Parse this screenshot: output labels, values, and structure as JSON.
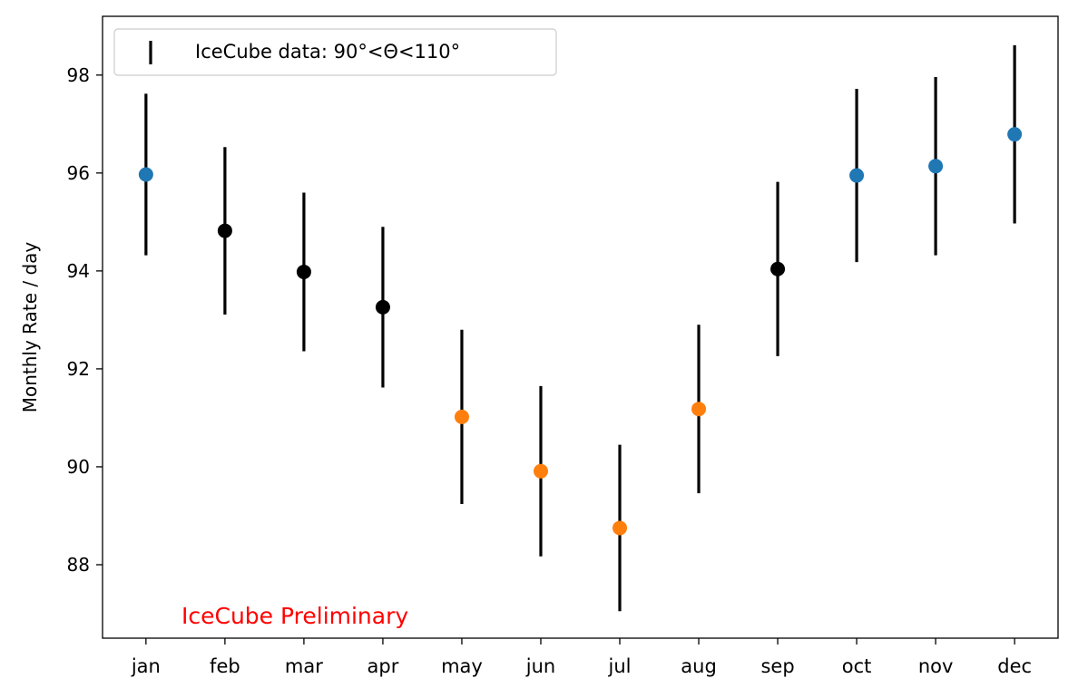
{
  "chart_data": {
    "type": "scatter",
    "title": "",
    "xlabel": "",
    "ylabel": "Monthly Rate / day",
    "ylim": [
      86.5,
      99.2
    ],
    "yticks": [
      88,
      90,
      92,
      94,
      96,
      98
    ],
    "categories": [
      "jan",
      "feb",
      "mar",
      "apr",
      "may",
      "jun",
      "jul",
      "aug",
      "sep",
      "oct",
      "nov",
      "dec"
    ],
    "values": [
      95.97,
      94.82,
      93.98,
      93.26,
      91.02,
      89.91,
      88.75,
      91.18,
      94.04,
      95.95,
      96.14,
      96.79
    ],
    "errors": [
      1.65,
      1.71,
      1.62,
      1.64,
      1.78,
      1.74,
      1.7,
      1.72,
      1.78,
      1.77,
      1.82,
      1.82
    ],
    "point_colors": [
      "#1f77b4",
      "#000000",
      "#000000",
      "#000000",
      "#ff7f0e",
      "#ff7f0e",
      "#ff7f0e",
      "#ff7f0e",
      "#000000",
      "#1f77b4",
      "#1f77b4",
      "#1f77b4"
    ],
    "legend": {
      "label": "IceCube data: 90°<Θ<110°",
      "position": "top-left"
    },
    "annotation": {
      "text": "IceCube Preliminary",
      "color": "#ff0000"
    },
    "grid": false
  }
}
